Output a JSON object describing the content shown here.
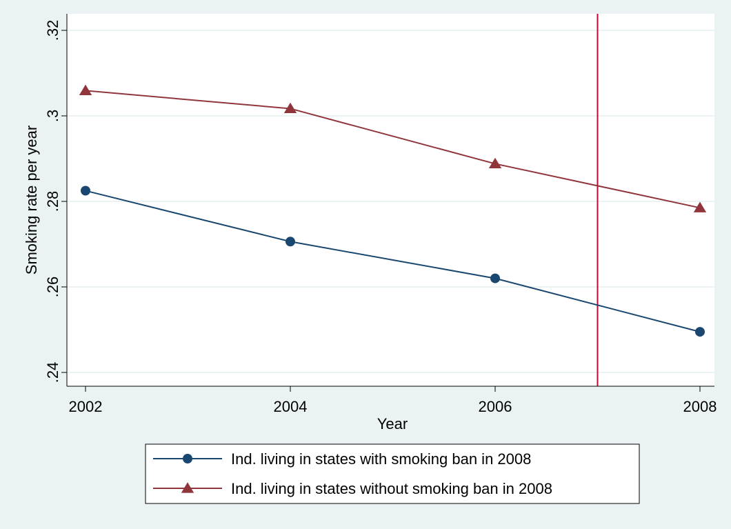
{
  "chart_data": {
    "type": "line",
    "title": "",
    "xlabel": "Year",
    "ylabel": "Smoking rate per year",
    "x": [
      2002,
      2004,
      2006,
      2008
    ],
    "xlim": [
      2002,
      2008
    ],
    "ylim": [
      0.24,
      0.32
    ],
    "xticks": [
      2002,
      2004,
      2006,
      2008
    ],
    "yticks": [
      0.24,
      0.26,
      0.28,
      0.3,
      0.32
    ],
    "xtick_labels": [
      "2002",
      "2004",
      "2006",
      "2008"
    ],
    "ytick_labels": [
      ".24",
      ".26",
      ".28",
      ".3",
      ".32"
    ],
    "grid": true,
    "legend_position": "bottom",
    "series": [
      {
        "name": "Ind. living in states with smoking ban in 2008",
        "values": [
          0.2825,
          0.2706,
          0.262,
          0.2495
        ],
        "color": "#1a476f",
        "marker": "circle"
      },
      {
        "name": "Ind. living in states without smoking ban in 2008",
        "values": [
          0.3059,
          0.3017,
          0.2888,
          0.2785
        ],
        "color": "#90353b",
        "marker": "triangle"
      }
    ],
    "reference_line": {
      "axis": "x",
      "value": 2007,
      "color": "#c10534"
    }
  },
  "colors": {
    "background": "#eaf2f3",
    "plot_background": "#ffffff",
    "gridline": "#eaf2f3"
  }
}
